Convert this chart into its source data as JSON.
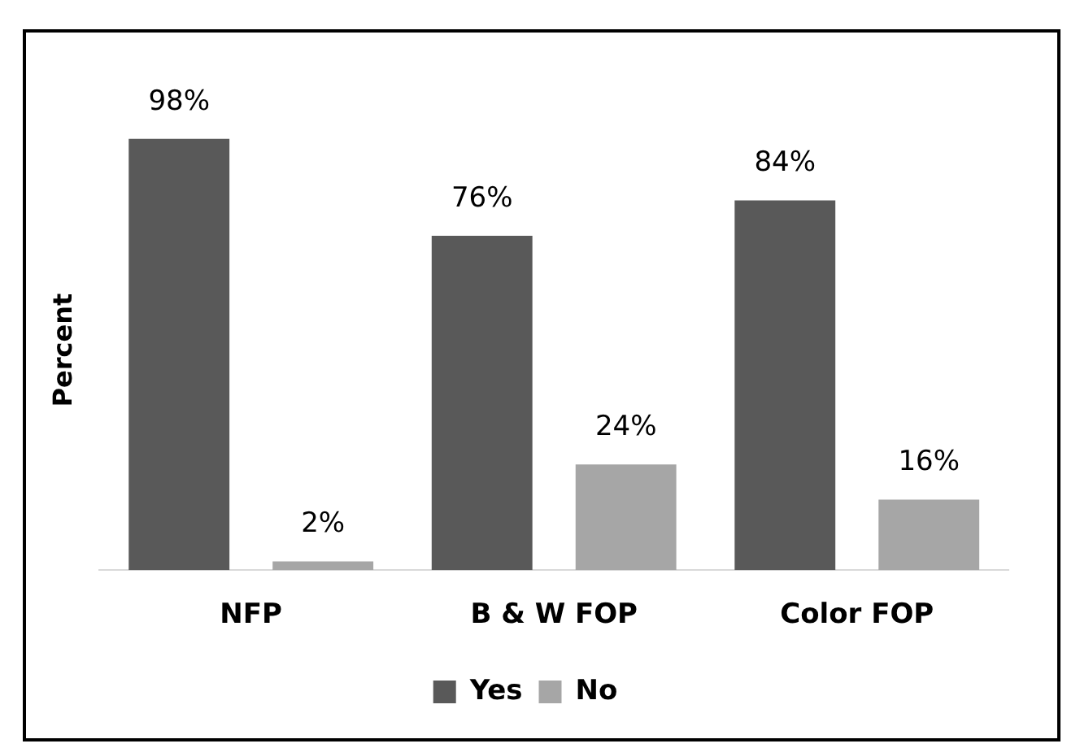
{
  "chart_data": {
    "type": "bar",
    "ylabel": "Percent",
    "categories": [
      "NFP",
      "B & W FOP",
      "Color FOP"
    ],
    "series": [
      {
        "name": "Yes",
        "color": "#595959",
        "values": [
          98,
          76,
          84
        ],
        "value_labels": [
          "98%",
          "76%",
          "84%"
        ]
      },
      {
        "name": "No",
        "color": "#a6a6a6",
        "values": [
          2,
          24,
          16
        ],
        "value_labels": [
          "2%",
          "24%",
          "16%"
        ]
      }
    ],
    "legend": "bottom",
    "grid": false
  }
}
